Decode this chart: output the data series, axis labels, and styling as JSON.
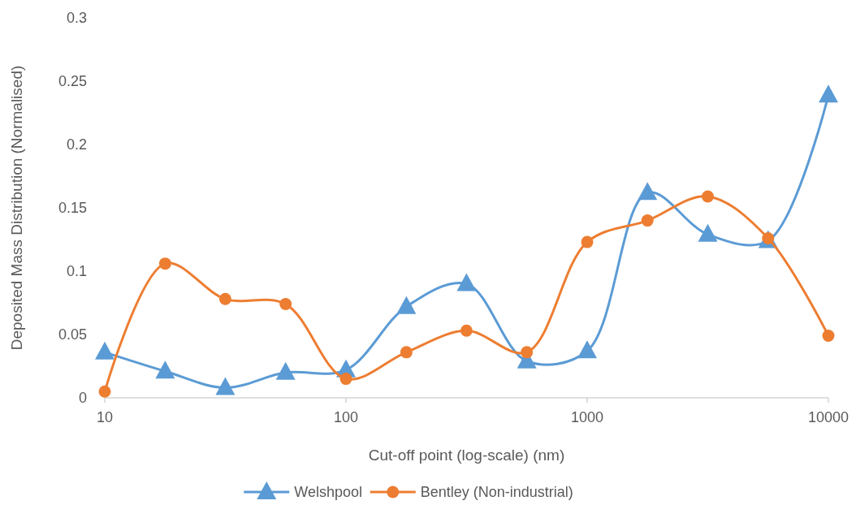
{
  "chart_data": {
    "type": "line",
    "xlabel": "Cut-off point (log-scale) (nm)",
    "ylabel": "Deposited Mass Distribution (Normalised)",
    "log": "x",
    "x": [
      10,
      17.8,
      31.6,
      56.2,
      100,
      178,
      316,
      562,
      1000,
      1778,
      3162,
      5623,
      10000
    ],
    "series": [
      {
        "name": "Welshpool",
        "color": "#5b9bd5",
        "marker": "triangle",
        "values": [
          0.036,
          0.021,
          0.008,
          0.02,
          0.022,
          0.072,
          0.09,
          0.029,
          0.037,
          0.162,
          0.129,
          0.124,
          0.239
        ]
      },
      {
        "name": "Bentley (Non-industrial)",
        "color": "#ed7d31",
        "marker": "circle",
        "values": [
          0.005,
          0.106,
          0.078,
          0.074,
          0.015,
          0.036,
          0.053,
          0.036,
          0.123,
          0.14,
          0.159,
          0.126,
          0.049
        ]
      }
    ],
    "xlim": [
      10,
      10000
    ],
    "xticks": [
      10,
      100,
      1000,
      10000
    ],
    "ylim": [
      0,
      0.3
    ],
    "yticks": [
      0,
      0.05,
      0.1,
      0.15,
      0.2,
      0.25,
      0.3
    ],
    "grid": false,
    "legend": "bottom"
  }
}
